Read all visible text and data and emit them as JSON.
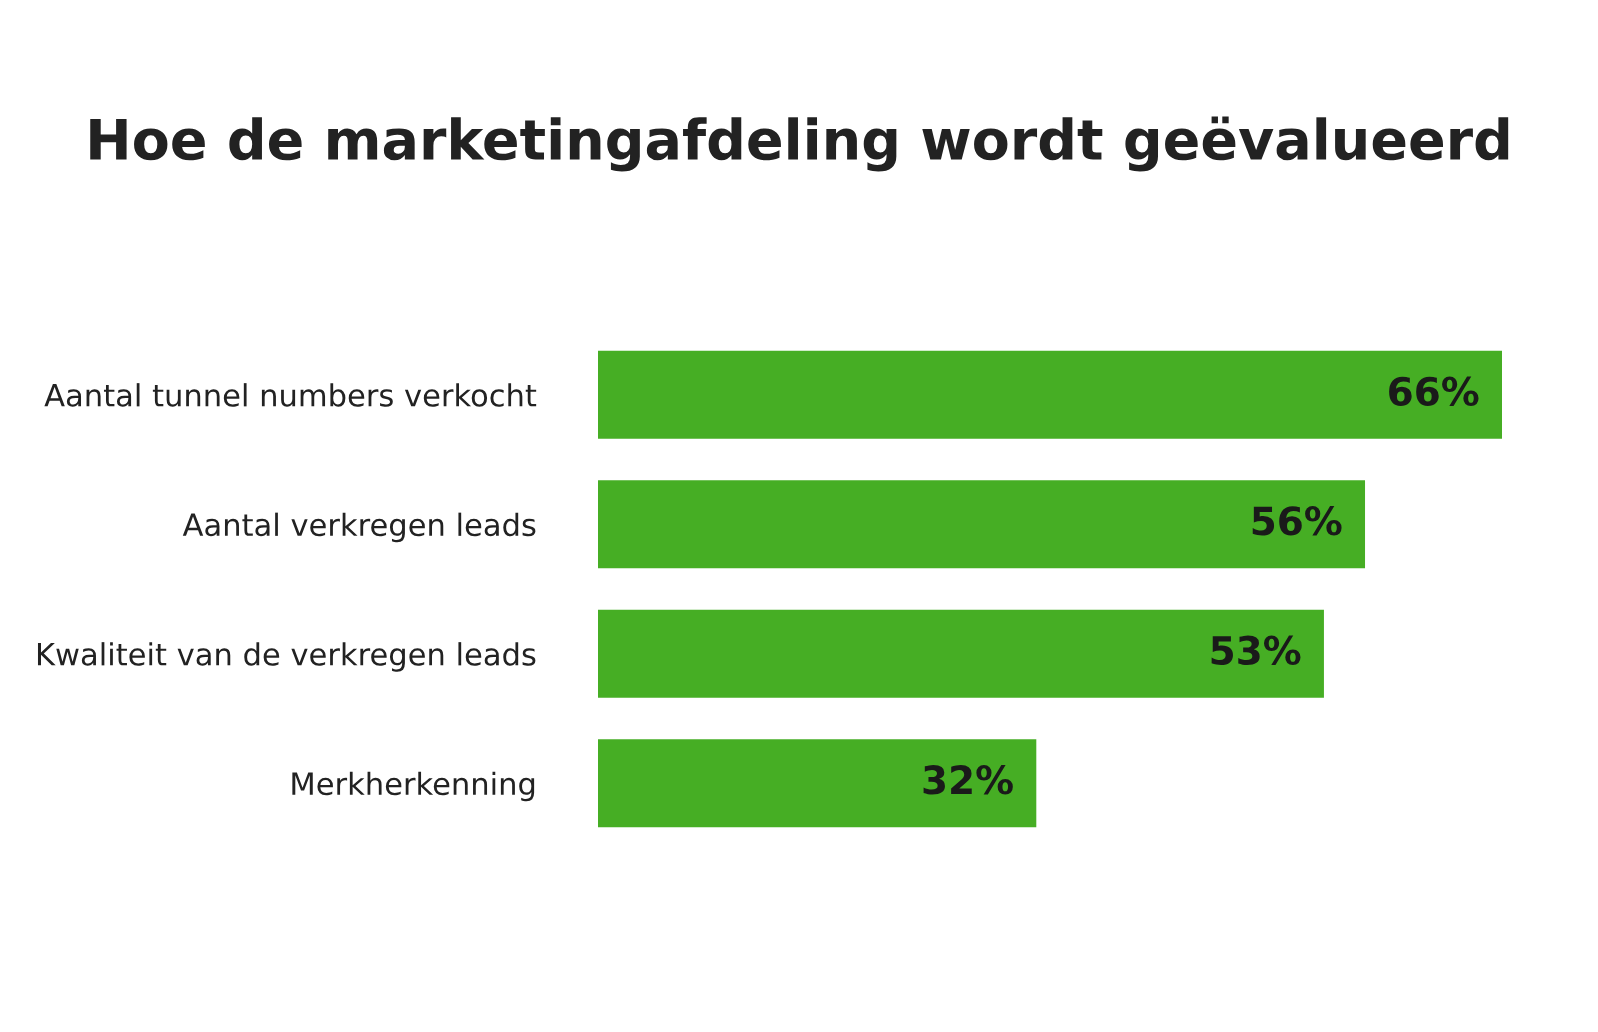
{
  "chart_data": {
    "type": "bar",
    "orientation": "horizontal",
    "title": "Hoe de marketingafdeling wordt geëvalueerd",
    "categories": [
      "Aantal tunnel numbers verkocht",
      "Aantal verkregen leads",
      "Kwaliteit van de verkregen leads",
      "Merkherkenning"
    ],
    "values": [
      66,
      56,
      53,
      32
    ],
    "value_labels": [
      "66%",
      "56%",
      "53%",
      "32%"
    ],
    "color": "#46ae24",
    "xlim": [
      0,
      66
    ],
    "tick_labels": "y"
  }
}
